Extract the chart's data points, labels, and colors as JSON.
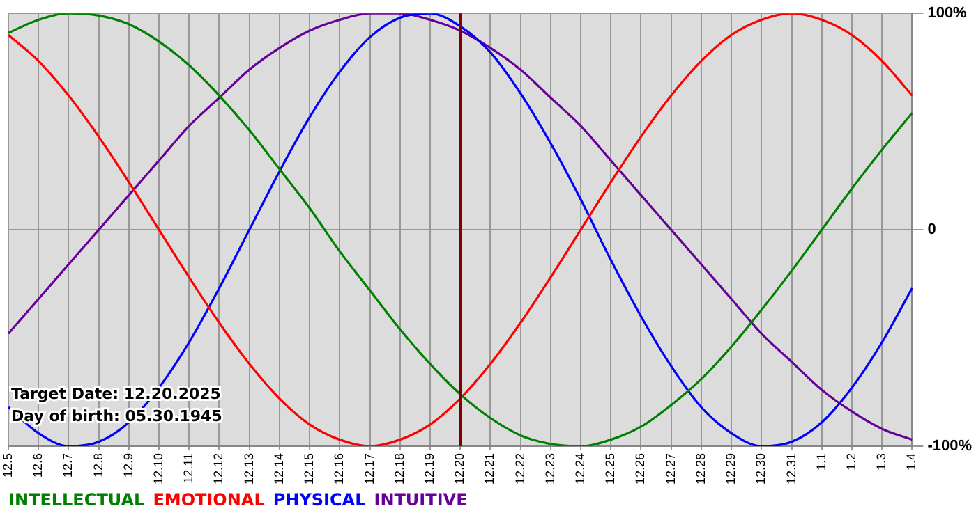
{
  "chart_data": {
    "type": "line",
    "categories": [
      "12.5",
      "12.6",
      "12.7",
      "12.8",
      "12.9",
      "12.10",
      "12.11",
      "12.12",
      "12.13",
      "12.14",
      "12.15",
      "12.16",
      "12.17",
      "12.18",
      "12.19",
      "12.20",
      "12.21",
      "12.22",
      "12.23",
      "12.24",
      "12.25",
      "12.26",
      "12.27",
      "12.28",
      "12.29",
      "12.30",
      "12.31",
      "1.1",
      "1.2",
      "1.3",
      "1.4"
    ],
    "series": [
      {
        "name": "INTELLECTUAL",
        "color": "#008000",
        "values": [
          91,
          97,
          100,
          99,
          95,
          87,
          76,
          62,
          46,
          28,
          10,
          -10,
          -28,
          -46,
          -62,
          -76,
          -87,
          -95,
          -99,
          -100,
          -97,
          -91,
          -81,
          -69,
          -54,
          -37,
          -19,
          0,
          19,
          37,
          54
        ]
      },
      {
        "name": "EMOTIONAL",
        "color": "#ff0000",
        "values": [
          90,
          78,
          62,
          43,
          22,
          0,
          -22,
          -43,
          -62,
          -78,
          -90,
          -97,
          -100,
          -97,
          -90,
          -78,
          -62,
          -43,
          -22,
          0,
          22,
          43,
          62,
          78,
          90,
          97,
          100,
          97,
          90,
          78,
          62
        ]
      },
      {
        "name": "PHYSICAL",
        "color": "#0000ff",
        "values": [
          -82,
          -94,
          -100,
          -98,
          -89,
          -73,
          -52,
          -27,
          0,
          27,
          52,
          73,
          89,
          98,
          100,
          94,
          82,
          63,
          40,
          14,
          -14,
          -40,
          -63,
          -82,
          -94,
          -100,
          -98,
          -89,
          -73,
          -52,
          -27
        ]
      },
      {
        "name": "INTUITIVE",
        "color": "#660099",
        "values": [
          -48,
          -32,
          -16,
          0,
          16,
          32,
          48,
          61,
          74,
          84,
          92,
          97,
          100,
          100,
          97,
          92,
          84,
          74,
          61,
          48,
          32,
          16,
          0,
          -16,
          -32,
          -48,
          -61,
          -74,
          -84,
          -92,
          -97
        ]
      }
    ],
    "ylim": [
      -100,
      100
    ],
    "yticks": [
      {
        "value": 100,
        "label": "100%"
      },
      0,
      {
        "value": -100,
        "label": "-100%"
      }
    ],
    "grid": true,
    "legend": "bottom left",
    "marker": "none",
    "ref_lines": [
      {
        "axis": "x",
        "value": "12.20",
        "color": "#800000"
      }
    ],
    "annotations": [
      "Target Date: 12.20.2025",
      "Day of birth: 05.30.1945"
    ]
  }
}
